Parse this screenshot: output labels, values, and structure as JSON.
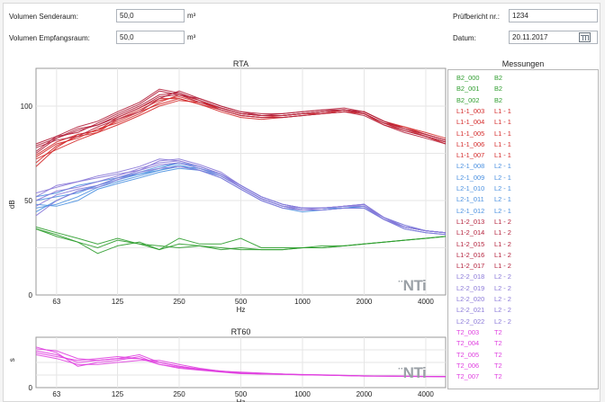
{
  "header": {
    "vol_send_label": "Volumen Senderaum:",
    "vol_send_value": "50,0",
    "vol_recv_label": "Volumen Empfangsraum:",
    "vol_recv_value": "50,0",
    "unit": "m³",
    "report_label": "Prüfbericht nr.:",
    "report_value": "1234",
    "date_label": "Datum:",
    "date_value": "20.11.2017"
  },
  "measurements_title": "Messungen",
  "measurements": [
    {
      "name": "B2_000",
      "group": "B2",
      "color": "#2e9d2e"
    },
    {
      "name": "B2_001",
      "group": "B2",
      "color": "#2e9d2e"
    },
    {
      "name": "B2_002",
      "group": "B2",
      "color": "#2e9d2e"
    },
    {
      "name": "L1-1_003",
      "group": "L1 - 1",
      "color": "#d42a2a"
    },
    {
      "name": "L1-1_004",
      "group": "L1 - 1",
      "color": "#d42a2a"
    },
    {
      "name": "L1-1_005",
      "group": "L1 - 1",
      "color": "#d42a2a"
    },
    {
      "name": "L1-1_006",
      "group": "L1 - 1",
      "color": "#d42a2a"
    },
    {
      "name": "L1-1_007",
      "group": "L1 - 1",
      "color": "#d42a2a"
    },
    {
      "name": "L2-1_008",
      "group": "L2 - 1",
      "color": "#4a90e0"
    },
    {
      "name": "L2-1_009",
      "group": "L2 - 1",
      "color": "#4a90e0"
    },
    {
      "name": "L2-1_010",
      "group": "L2 - 1",
      "color": "#4a90e0"
    },
    {
      "name": "L2-1_011",
      "group": "L2 - 1",
      "color": "#4a90e0"
    },
    {
      "name": "L2-1_012",
      "group": "L2 - 1",
      "color": "#4a90e0"
    },
    {
      "name": "L1-2_013",
      "group": "L1 - 2",
      "color": "#b31f3a"
    },
    {
      "name": "L1-2_014",
      "group": "L1 - 2",
      "color": "#b31f3a"
    },
    {
      "name": "L1-2_015",
      "group": "L1 - 2",
      "color": "#b31f3a"
    },
    {
      "name": "L1-2_016",
      "group": "L1 - 2",
      "color": "#b31f3a"
    },
    {
      "name": "L1-2_017",
      "group": "L1 - 2",
      "color": "#b31f3a"
    },
    {
      "name": "L2-2_018",
      "group": "L2 - 2",
      "color": "#8a78d8"
    },
    {
      "name": "L2-2_019",
      "group": "L2 - 2",
      "color": "#8a78d8"
    },
    {
      "name": "L2-2_020",
      "group": "L2 - 2",
      "color": "#8a78d8"
    },
    {
      "name": "L2-2_021",
      "group": "L2 - 2",
      "color": "#8a78d8"
    },
    {
      "name": "L2-2_022",
      "group": "L2 - 2",
      "color": "#8a78d8"
    },
    {
      "name": "T2_003",
      "group": "T2",
      "color": "#e040e0"
    },
    {
      "name": "T2_004",
      "group": "T2",
      "color": "#e040e0"
    },
    {
      "name": "T2_005",
      "group": "T2",
      "color": "#e040e0"
    },
    {
      "name": "T2_006",
      "group": "T2",
      "color": "#e040e0"
    },
    {
      "name": "T2_007",
      "group": "T2",
      "color": "#e040e0"
    }
  ],
  "logo_text": "NTi",
  "chart_data": [
    {
      "type": "line",
      "title": "RTA",
      "xlabel": "Hz",
      "ylabel": "dB",
      "x_scale": "log",
      "xlim": [
        50,
        5000
      ],
      "ylim": [
        0,
        120
      ],
      "x_ticks": [
        63,
        125,
        250,
        500,
        1000,
        2000,
        4000
      ],
      "x_tick_labels": [
        "63",
        "125",
        "250",
        "500",
        "1000",
        "2000",
        "4000"
      ],
      "y_ticks": [
        0,
        50,
        100
      ],
      "y_tick_labels": [
        "0",
        "50",
        "100"
      ],
      "grid": true,
      "x": [
        50,
        63,
        80,
        100,
        125,
        160,
        200,
        250,
        315,
        400,
        500,
        630,
        800,
        1000,
        1250,
        1600,
        2000,
        2500,
        3150,
        4000,
        5000
      ],
      "series": [
        {
          "group": "B2",
          "color": "#2e9d2e",
          "values": [
            36,
            33,
            30,
            27,
            30,
            27,
            26,
            25,
            26,
            25,
            24,
            24,
            24,
            25,
            25,
            26,
            27,
            28,
            29,
            30,
            31
          ]
        },
        {
          "group": "B2",
          "color": "#2e9d2e",
          "values": [
            35,
            32,
            28,
            25,
            29,
            27,
            24,
            30,
            27,
            27,
            30,
            25,
            25,
            25,
            26,
            26,
            27,
            28,
            29,
            30,
            31
          ]
        },
        {
          "group": "B2",
          "color": "#2e9d2e",
          "values": [
            35,
            31,
            28,
            22,
            26,
            28,
            24,
            27,
            26,
            24,
            25,
            24,
            24,
            25,
            25,
            26,
            27,
            28,
            29,
            30,
            31
          ]
        },
        {
          "group": "L1 - 1",
          "color": "#d42a2a",
          "values": [
            74,
            81,
            85,
            87,
            92,
            97,
            101,
            104,
            101,
            98,
            95,
            94,
            94,
            95,
            96,
            97,
            96,
            91,
            89,
            85,
            82
          ]
        },
        {
          "group": "L1 - 1",
          "color": "#d42a2a",
          "values": [
            70,
            79,
            84,
            86,
            93,
            98,
            103,
            105,
            102,
            99,
            96,
            95,
            95,
            96,
            97,
            98,
            97,
            92,
            88,
            85,
            82
          ]
        },
        {
          "group": "L1 - 1",
          "color": "#d42a2a",
          "values": [
            73,
            80,
            83,
            88,
            91,
            96,
            102,
            106,
            103,
            98,
            95,
            94,
            95,
            96,
            96,
            98,
            96,
            91,
            88,
            84,
            81
          ]
        },
        {
          "group": "L1 - 1",
          "color": "#d42a2a",
          "values": [
            68,
            78,
            85,
            87,
            94,
            99,
            104,
            104,
            101,
            97,
            94,
            93,
            94,
            95,
            96,
            97,
            96,
            90,
            87,
            84,
            80
          ]
        },
        {
          "group": "L1 - 1",
          "color": "#d42a2a",
          "values": [
            72,
            77,
            82,
            86,
            90,
            95,
            100,
            103,
            102,
            99,
            96,
            95,
            95,
            96,
            97,
            98,
            97,
            92,
            89,
            86,
            83
          ]
        },
        {
          "group": "L2 - 1",
          "color": "#4a90e0",
          "values": [
            50,
            52,
            54,
            58,
            61,
            64,
            67,
            70,
            67,
            64,
            58,
            52,
            48,
            46,
            46,
            47,
            48,
            41,
            36,
            34,
            33
          ]
        },
        {
          "group": "L2 - 1",
          "color": "#4a90e0",
          "values": [
            46,
            48,
            52,
            57,
            60,
            63,
            66,
            69,
            66,
            63,
            57,
            51,
            47,
            45,
            45,
            46,
            47,
            40,
            36,
            34,
            33
          ]
        },
        {
          "group": "L2 - 1",
          "color": "#4a90e0",
          "values": [
            52,
            54,
            58,
            60,
            62,
            65,
            68,
            70,
            68,
            64,
            58,
            52,
            48,
            46,
            46,
            46,
            47,
            41,
            37,
            34,
            33
          ]
        },
        {
          "group": "L2 - 1",
          "color": "#4a90e0",
          "values": [
            44,
            50,
            55,
            58,
            62,
            64,
            66,
            68,
            67,
            63,
            57,
            51,
            47,
            45,
            45,
            46,
            46,
            40,
            36,
            34,
            33
          ]
        },
        {
          "group": "L2 - 1",
          "color": "#4a90e0",
          "values": [
            48,
            47,
            50,
            56,
            59,
            62,
            65,
            67,
            66,
            62,
            56,
            50,
            46,
            44,
            45,
            46,
            46,
            40,
            35,
            33,
            32
          ]
        },
        {
          "group": "L1 - 2",
          "color": "#b31f3a",
          "values": [
            78,
            82,
            84,
            89,
            93,
            97,
            104,
            108,
            104,
            100,
            97,
            95,
            96,
            97,
            98,
            99,
            97,
            92,
            88,
            85,
            82
          ]
        },
        {
          "group": "L1 - 2",
          "color": "#b31f3a",
          "values": [
            75,
            83,
            88,
            90,
            95,
            100,
            106,
            107,
            103,
            99,
            96,
            95,
            95,
            96,
            97,
            98,
            96,
            91,
            87,
            84,
            81
          ]
        },
        {
          "group": "L1 - 2",
          "color": "#b31f3a",
          "values": [
            80,
            84,
            86,
            91,
            96,
            101,
            108,
            106,
            102,
            98,
            95,
            94,
            94,
            95,
            96,
            97,
            95,
            90,
            86,
            83,
            80
          ]
        },
        {
          "group": "L1 - 2",
          "color": "#b31f3a",
          "values": [
            76,
            84,
            89,
            92,
            97,
            102,
            109,
            107,
            103,
            99,
            96,
            95,
            95,
            96,
            97,
            98,
            96,
            91,
            87,
            84,
            81
          ]
        },
        {
          "group": "L1 - 2",
          "color": "#b31f3a",
          "values": [
            79,
            83,
            87,
            90,
            94,
            99,
            105,
            106,
            104,
            100,
            97,
            96,
            96,
            97,
            98,
            98,
            97,
            92,
            88,
            85,
            82
          ]
        },
        {
          "group": "L2 - 2",
          "color": "#8a78d8",
          "values": [
            52,
            58,
            60,
            62,
            64,
            66,
            71,
            72,
            69,
            65,
            58,
            52,
            48,
            46,
            46,
            47,
            48,
            41,
            36,
            34,
            33
          ]
        },
        {
          "group": "L2 - 2",
          "color": "#8a78d8",
          "values": [
            50,
            55,
            57,
            60,
            63,
            67,
            70,
            71,
            68,
            64,
            58,
            52,
            48,
            46,
            46,
            47,
            48,
            41,
            37,
            34,
            33
          ]
        },
        {
          "group": "L2 - 2",
          "color": "#8a78d8",
          "values": [
            47,
            53,
            56,
            58,
            62,
            66,
            69,
            70,
            67,
            63,
            57,
            51,
            47,
            46,
            46,
            47,
            47,
            41,
            36,
            34,
            33
          ]
        },
        {
          "group": "L2 - 2",
          "color": "#8a78d8",
          "values": [
            54,
            57,
            60,
            63,
            65,
            68,
            72,
            71,
            68,
            64,
            57,
            51,
            47,
            45,
            46,
            47,
            47,
            40,
            36,
            34,
            33
          ]
        },
        {
          "group": "L2 - 2",
          "color": "#8a78d8",
          "values": [
            42,
            50,
            55,
            57,
            61,
            65,
            67,
            68,
            66,
            62,
            56,
            50,
            46,
            45,
            45,
            46,
            46,
            40,
            35,
            33,
            32
          ]
        }
      ]
    },
    {
      "type": "line",
      "title": "RT60",
      "xlabel": "Hz",
      "ylabel": "s",
      "x_scale": "log",
      "xlim": [
        50,
        5000
      ],
      "ylim": [
        0,
        2.6
      ],
      "x_ticks": [
        63,
        125,
        250,
        500,
        1000,
        2000,
        4000
      ],
      "x_tick_labels": [
        "63",
        "125",
        "250",
        "500",
        "1000",
        "2000",
        "4000"
      ],
      "y_ticks": [
        0
      ],
      "y_tick_labels": [
        "0"
      ],
      "grid": true,
      "x": [
        50,
        63,
        80,
        100,
        125,
        160,
        200,
        250,
        315,
        400,
        500,
        630,
        800,
        1000,
        1250,
        1600,
        2000,
        2500,
        3150,
        4000,
        5000
      ],
      "series": [
        {
          "group": "T2",
          "color": "#e040e0",
          "values": [
            1.9,
            1.7,
            1.3,
            1.4,
            1.5,
            1.5,
            1.3,
            1.1,
            0.95,
            0.85,
            0.75,
            0.7,
            0.7,
            0.65,
            0.65,
            0.62,
            0.6,
            0.6,
            0.58,
            0.58,
            0.58
          ]
        },
        {
          "group": "T2",
          "color": "#e040e0",
          "values": [
            2.1,
            1.8,
            1.1,
            1.3,
            1.4,
            1.6,
            1.2,
            1.0,
            0.9,
            0.8,
            0.72,
            0.7,
            0.68,
            0.66,
            0.64,
            0.62,
            0.6,
            0.6,
            0.58,
            0.57,
            0.56
          ]
        },
        {
          "group": "T2",
          "color": "#e040e0",
          "values": [
            1.7,
            1.5,
            1.2,
            1.2,
            1.3,
            1.4,
            1.4,
            1.2,
            1.0,
            0.85,
            0.8,
            0.75,
            0.7,
            0.68,
            0.66,
            0.63,
            0.61,
            0.6,
            0.59,
            0.58,
            0.57
          ]
        },
        {
          "group": "T2",
          "color": "#e040e0",
          "values": [
            1.8,
            1.6,
            1.4,
            1.5,
            1.6,
            1.5,
            1.2,
            1.05,
            0.92,
            0.82,
            0.74,
            0.7,
            0.69,
            0.67,
            0.65,
            0.62,
            0.6,
            0.59,
            0.58,
            0.57,
            0.56
          ]
        },
        {
          "group": "T2",
          "color": "#e040e0",
          "values": [
            2.0,
            1.9,
            1.5,
            1.4,
            1.5,
            1.7,
            1.3,
            1.1,
            0.95,
            0.86,
            0.76,
            0.72,
            0.7,
            0.67,
            0.65,
            0.63,
            0.61,
            0.6,
            0.59,
            0.58,
            0.57
          ]
        }
      ]
    }
  ]
}
